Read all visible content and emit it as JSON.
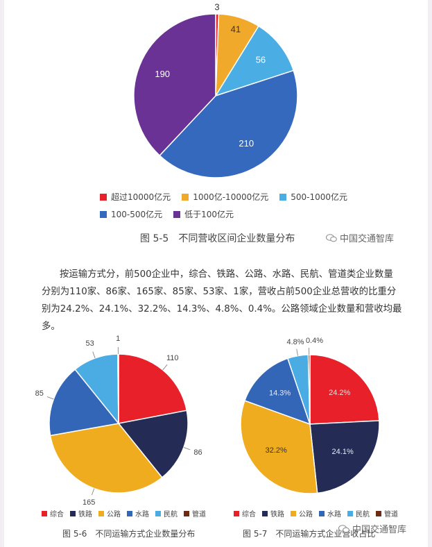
{
  "chart_data": [
    {
      "type": "pie",
      "title": "",
      "categories": [
        "超过10000亿元",
        "1000亿-10000亿元",
        "500-1000亿元",
        "100-500亿元",
        "低于100亿元"
      ],
      "values": [
        3,
        41,
        56,
        210,
        190
      ],
      "colors": [
        "#e8202a",
        "#f0a92a",
        "#4aaee4",
        "#3569be",
        "#6a3294"
      ],
      "data_labels": [
        "3",
        "41",
        "56",
        "210",
        "190"
      ],
      "legend_position": "bottom"
    },
    {
      "type": "pie",
      "title": "",
      "categories": [
        "综合",
        "铁路",
        "公路",
        "水路",
        "民航",
        "管道"
      ],
      "values": [
        110,
        86,
        165,
        85,
        53,
        1
      ],
      "colors": [
        "#e8202a",
        "#242b55",
        "#f0ac1f",
        "#3466b8",
        "#4aace2",
        "#6e2a12"
      ],
      "data_labels": [
        "110",
        "86",
        "165",
        "85",
        "53",
        "1"
      ],
      "legend_position": "bottom"
    },
    {
      "type": "pie",
      "title": "",
      "categories": [
        "综合",
        "铁路",
        "公路",
        "水路",
        "民航",
        "管道"
      ],
      "values": [
        24.2,
        24.1,
        32.2,
        14.3,
        4.8,
        0.4
      ],
      "colors": [
        "#e8202a",
        "#242b55",
        "#f0ac1f",
        "#3466b8",
        "#4aace2",
        "#6e2a12"
      ],
      "data_labels": [
        "24.2%",
        "24.1%",
        "32.2%",
        "14.3%",
        "4.8%",
        "0.4%"
      ],
      "legend_position": "bottom"
    }
  ],
  "captions": {
    "fig5": "图 5-5　不同营收区间企业数量分布",
    "fig6": "图 5-6　不同运输方式企业数量分布",
    "fig7": "图 5-7　不同运输方式企业营收占比"
  },
  "watermark": "中国交通智库",
  "paragraph": "按运输方式分，前500企业中，综合、铁路、公路、水路、民航、管道类企业数量分别为110家、86家、165家、85家、53家、1家，营收占前500企业总营收的比重分别为24.2%、24.1%、32.2%、14.3%、4.8%、0.4%。公路领域企业数量和营收均最多。"
}
